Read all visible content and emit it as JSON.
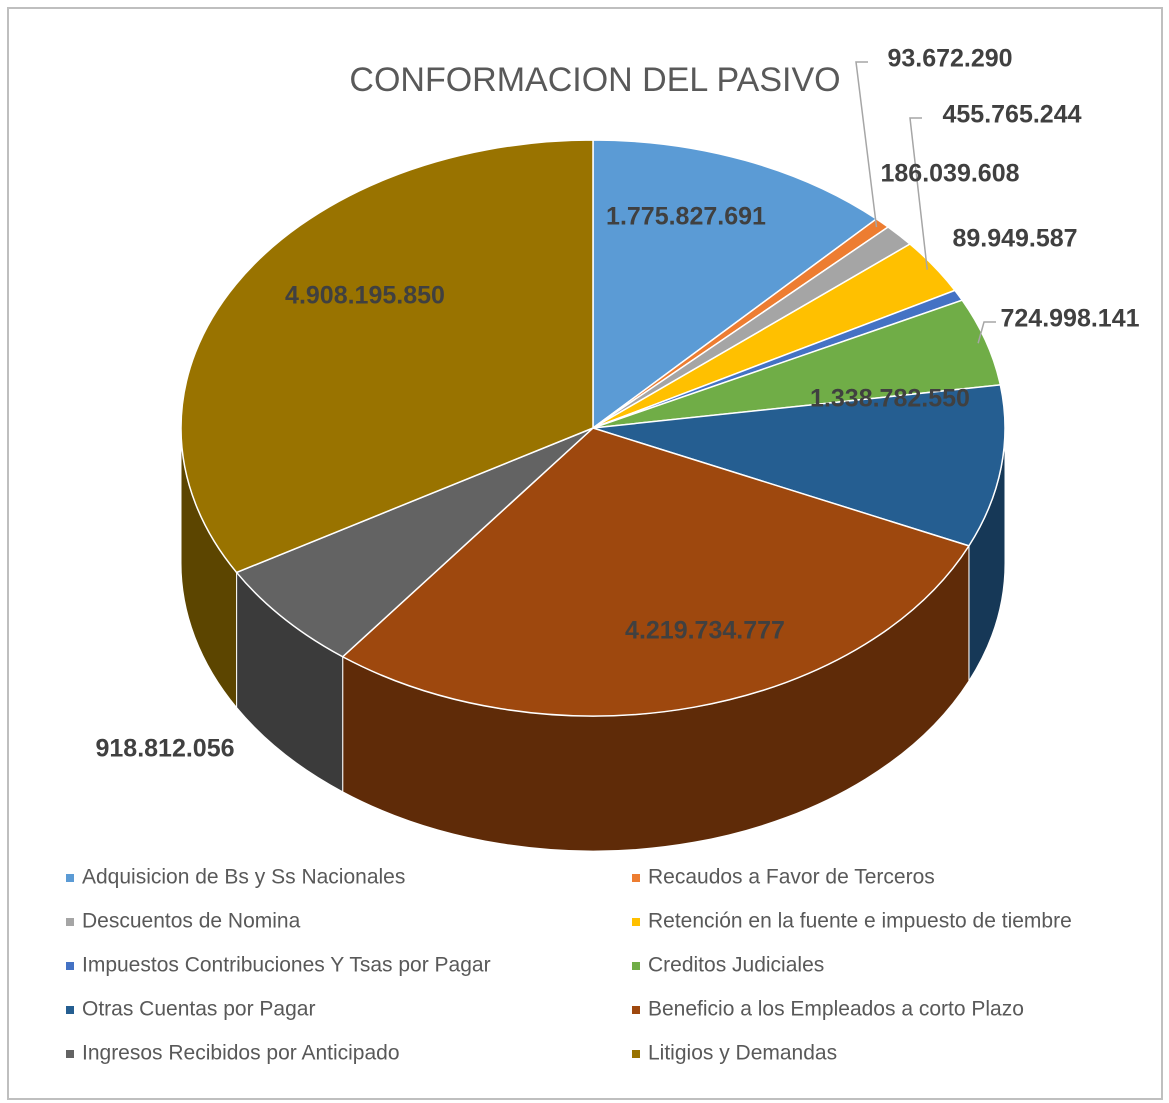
{
  "chart_data": {
    "type": "pie",
    "title": "CONFORMACION DEL PASIVO",
    "categories": [
      "Adquisicion de Bs y Ss Nacionales",
      "Recaudos a Favor de Terceros",
      "Descuentos de Nomina",
      "Retención en la fuente e impuesto de tiembre",
      "Impuestos Contribuciones Y Tsas por Pagar",
      "Creditos Judiciales",
      "Otras Cuentas por Pagar",
      "Beneficio a los Empleados a corto Plazo",
      "Ingresos Recibidos por Anticipado",
      "Litigios y Demandas"
    ],
    "values": [
      1775827691,
      93672290,
      186039608,
      455765244,
      89949587,
      724998141,
      1338782550,
      4219734777,
      918812056,
      4908195850
    ],
    "value_labels": [
      "1.775.827.691",
      "93.672.290",
      "186.039.608",
      "455.765.244",
      "89.949.587",
      "724.998.141",
      "1.338.782.550",
      "4.219.734.777",
      "918.812.056",
      "4.908.195.850"
    ],
    "colors": [
      "#5b9bd5",
      "#ed7d31",
      "#a5a5a5",
      "#ffc000",
      "#4472c4",
      "#70ad47",
      "#255e91",
      "#9e480e",
      "#636363",
      "#997300"
    ],
    "legend": "bottom"
  }
}
